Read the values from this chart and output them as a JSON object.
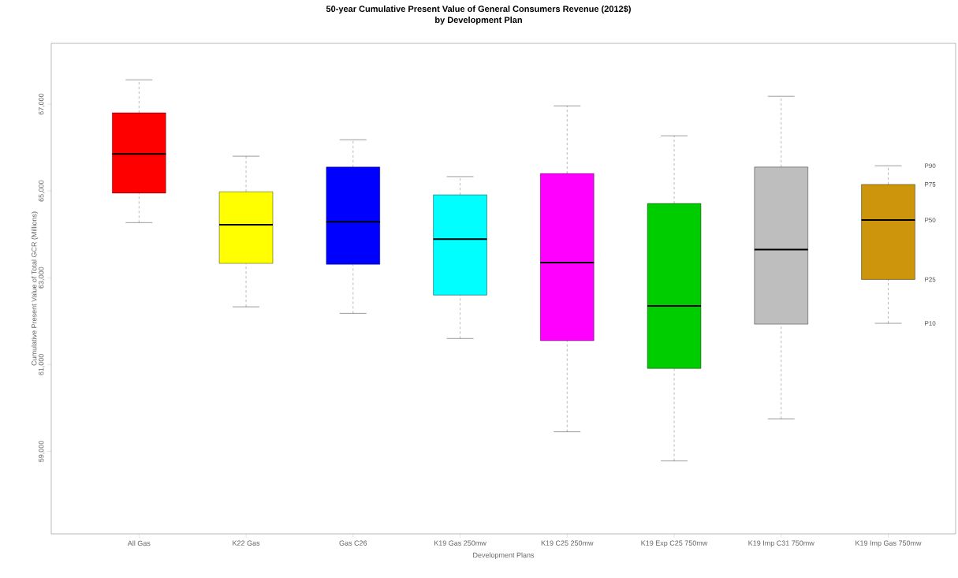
{
  "chart_data": {
    "type": "box",
    "title": "50-year Cumulative Present Value of General Consumers Revenue (2012$)",
    "subtitle": "by Development Plan",
    "xlabel": "Development Plans",
    "ylabel": "Cumulative Present Value of Total GCR (Millions)",
    "categories": [
      "All Gas",
      "K22 Gas",
      "Gas C26",
      "K19 Gas 250mw",
      "K19 C25 250mw",
      "K19 Exp C25 750mw",
      "K19 Imp C31 750mw",
      "K19 Imp Gas 750mw"
    ],
    "colors": [
      "#ff0000",
      "#ffff00",
      "#0000ff",
      "#00ffff",
      "#ff00ff",
      "#00cd00",
      "#bebebe",
      "#cd950c"
    ],
    "boxes": [
      {
        "low": 64270,
        "q1": 64950,
        "median": 65850,
        "q3": 66800,
        "high": 67560
      },
      {
        "low": 62330,
        "q1": 63330,
        "median": 64220,
        "q3": 64980,
        "high": 65800
      },
      {
        "low": 62180,
        "q1": 63310,
        "median": 64290,
        "q3": 65550,
        "high": 66180
      },
      {
        "low": 61600,
        "q1": 62600,
        "median": 63890,
        "q3": 64910,
        "high": 65330
      },
      {
        "low": 59450,
        "q1": 61550,
        "median": 63350,
        "q3": 65400,
        "high": 66960
      },
      {
        "low": 58780,
        "q1": 60910,
        "median": 62350,
        "q3": 64710,
        "high": 66270
      },
      {
        "low": 59750,
        "q1": 61930,
        "median": 63650,
        "q3": 65550,
        "high": 67180
      },
      {
        "low": 61950,
        "q1": 62960,
        "median": 64330,
        "q3": 65150,
        "high": 65580
      }
    ],
    "ylim": [
      57100,
      68400
    ],
    "yticks": [
      {
        "value": 59000,
        "label": "59,000"
      },
      {
        "value": 61000,
        "label": "61,000"
      },
      {
        "value": 63000,
        "label": "63,000"
      },
      {
        "value": 65000,
        "label": "65,000"
      },
      {
        "value": 67000,
        "label": "67,000"
      }
    ],
    "annotations": [
      "P90",
      "P75",
      "P50",
      "P25",
      "P10"
    ],
    "grid": false
  }
}
